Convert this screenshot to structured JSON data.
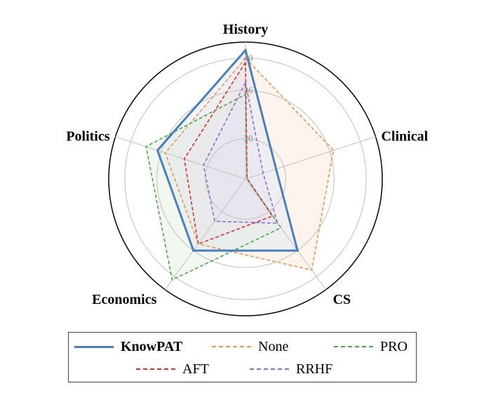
{
  "chart_data": {
    "type": "radar",
    "title": "",
    "axes": [
      "History",
      "Clinical",
      "CS",
      "Economics",
      "Politics"
    ],
    "rlim": [
      25,
      42
    ],
    "ticks": [
      30,
      36,
      40
    ],
    "tick_labels": [
      "30",
      "36",
      "40"
    ],
    "grid": true,
    "legend_position": "bottom",
    "series": [
      {
        "name": "KnowPAT",
        "values": [
          41.0,
          29.0,
          36.0,
          36.0,
          36.5
        ],
        "color": "#4a7ebb",
        "dash": "solid",
        "fill": "#dde6f3",
        "bold": true
      },
      {
        "name": "None",
        "values": [
          40.0,
          36.5,
          39.0,
          35.0,
          35.5
        ],
        "color": "#f4934a",
        "dash": "dashed",
        "fill": "#fbe6d6",
        "bold": false
      },
      {
        "name": "PRO",
        "values": [
          35.5,
          25.2,
          32.5,
          40.5,
          38.0
        ],
        "color": "#4ea64a",
        "dash": "dashed",
        "fill": "#e3f0dc",
        "bold": false
      },
      {
        "name": "AFT",
        "values": [
          39.5,
          25.2,
          30.7,
          35.0,
          33.0
        ],
        "color": "#d03434",
        "dash": "dashed",
        "fill": "#f6dede",
        "bold": false
      },
      {
        "name": "RRHF",
        "values": [
          37.0,
          27.3,
          31.8,
          31.5,
          30.5
        ],
        "color": "#8e6cc9",
        "dash": "dashed",
        "fill": "#e8e1f5",
        "bold": false
      }
    ]
  }
}
